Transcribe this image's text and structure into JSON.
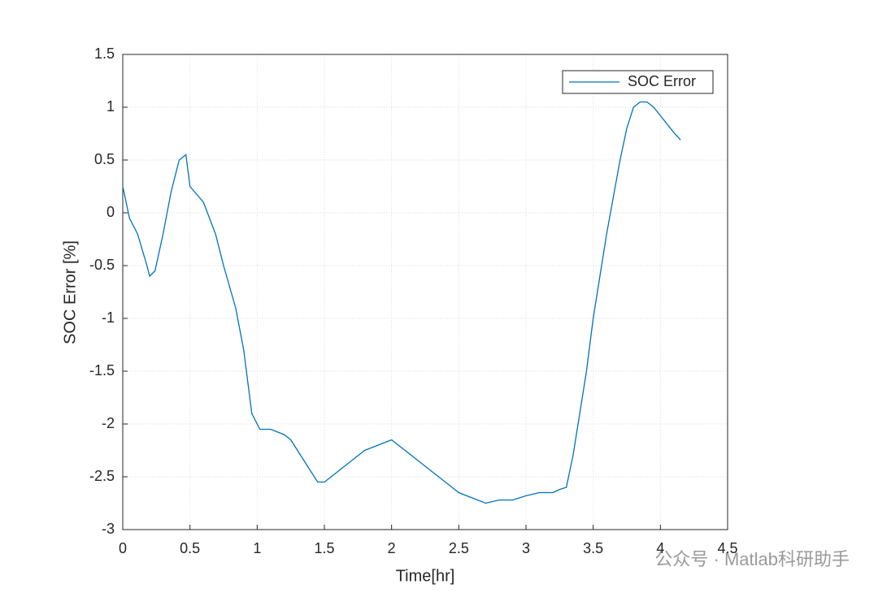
{
  "chart_data": {
    "type": "line",
    "xlabel": "Time[hr]",
    "ylabel": "SOC Error [%]",
    "x": [
      0,
      0.05,
      0.11,
      0.18,
      0.2,
      0.24,
      0.3,
      0.36,
      0.42,
      0.47,
      0.5,
      0.6,
      0.69,
      0.75,
      0.84,
      0.9,
      0.96,
      1.02,
      1.1,
      1.2,
      1.25,
      1.3,
      1.35,
      1.4,
      1.45,
      1.5,
      1.55,
      1.6,
      1.7,
      1.8,
      1.9,
      2.0,
      2.05,
      2.1,
      2.2,
      2.3,
      2.4,
      2.5,
      2.6,
      2.7,
      2.8,
      2.9,
      3.0,
      3.1,
      3.2,
      3.25,
      3.3,
      3.35,
      3.4,
      3.45,
      3.5,
      3.55,
      3.6,
      3.65,
      3.7,
      3.75,
      3.8,
      3.85,
      3.9,
      3.95,
      4.0,
      4.05,
      4.1,
      4.15
    ],
    "series": [
      {
        "name": "SOC Error",
        "color": "#0072bd",
        "values": [
          0.25,
          -0.05,
          -0.2,
          -0.5,
          -0.6,
          -0.55,
          -0.2,
          0.2,
          0.5,
          0.55,
          0.25,
          0.1,
          -0.2,
          -0.5,
          -0.9,
          -1.3,
          -1.9,
          -2.05,
          -2.05,
          -2.1,
          -2.15,
          -2.25,
          -2.35,
          -2.45,
          -2.55,
          -2.55,
          -2.5,
          -2.45,
          -2.35,
          -2.25,
          -2.2,
          -2.15,
          -2.2,
          -2.25,
          -2.35,
          -2.45,
          -2.55,
          -2.65,
          -2.7,
          -2.75,
          -2.72,
          -2.72,
          -2.68,
          -2.65,
          -2.65,
          -2.62,
          -2.6,
          -2.3,
          -1.9,
          -1.5,
          -1.0,
          -0.6,
          -0.2,
          0.15,
          0.5,
          0.8,
          1.0,
          1.05,
          1.05,
          1.0,
          0.92,
          0.84,
          0.76,
          0.69
        ]
      }
    ],
    "xlim": [
      0,
      4.5
    ],
    "xticks": [
      0,
      0.5,
      1,
      1.5,
      2,
      2.5,
      3,
      3.5,
      4,
      4.5
    ],
    "ylim": [
      -3,
      1.5
    ],
    "yticks": [
      -3,
      -2.5,
      -2,
      -1.5,
      -1,
      -0.5,
      0,
      0.5,
      1,
      1.5
    ],
    "grid": true,
    "legend": "upper right"
  },
  "watermark": "公众号 · Matlab科研助手"
}
